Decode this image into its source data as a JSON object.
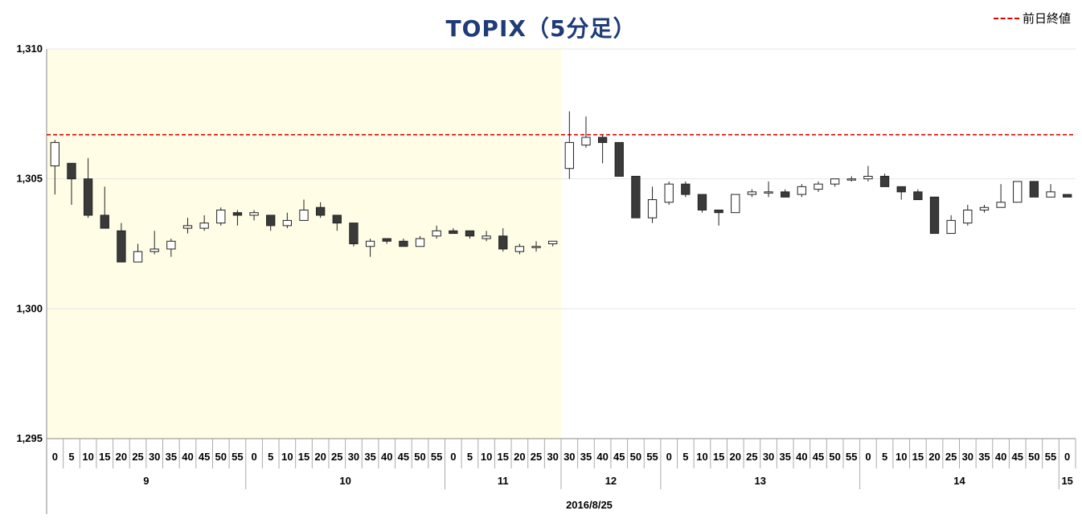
{
  "chart_data": {
    "type": "candlestick",
    "title": "TOPIX（5分足）",
    "legend": {
      "label": "前日終値",
      "color": "#e00000",
      "style": "dashed",
      "position": "top-right"
    },
    "reference_line": {
      "name": "前日終値",
      "value": 1306.7
    },
    "ylim": [
      1295,
      1310
    ],
    "yticks": [
      1295,
      1300,
      1305,
      1310
    ],
    "ytick_labels": [
      "1,295",
      "1,300",
      "1,305",
      "1,310"
    ],
    "date_label": "2016/8/25",
    "morning_session_shading": "#fffde6",
    "hour_groups": [
      {
        "label": "9",
        "count": 12
      },
      {
        "label": "10",
        "count": 12
      },
      {
        "label": "11",
        "count": 7
      },
      {
        "label": "12",
        "count": 6
      },
      {
        "label": "13",
        "count": 12
      },
      {
        "label": "14",
        "count": 12
      },
      {
        "label": "15",
        "count": 1
      }
    ],
    "shaded_count": 31,
    "candles": [
      {
        "x": "0",
        "o": 1305.5,
        "h": 1306.5,
        "l": 1304.4,
        "c": 1306.4
      },
      {
        "x": "5",
        "o": 1305.6,
        "h": 1305.6,
        "l": 1304.0,
        "c": 1305.0
      },
      {
        "x": "10",
        "o": 1305.0,
        "h": 1305.8,
        "l": 1303.5,
        "c": 1303.6
      },
      {
        "x": "15",
        "o": 1303.6,
        "h": 1304.7,
        "l": 1303.1,
        "c": 1303.1
      },
      {
        "x": "20",
        "o": 1303.0,
        "h": 1303.3,
        "l": 1301.8,
        "c": 1301.8
      },
      {
        "x": "25",
        "o": 1301.8,
        "h": 1302.5,
        "l": 1301.8,
        "c": 1302.2
      },
      {
        "x": "30",
        "o": 1302.2,
        "h": 1303.0,
        "l": 1302.1,
        "c": 1302.3
      },
      {
        "x": "35",
        "o": 1302.3,
        "h": 1302.7,
        "l": 1302.0,
        "c": 1302.6
      },
      {
        "x": "40",
        "o": 1303.1,
        "h": 1303.5,
        "l": 1302.9,
        "c": 1303.2
      },
      {
        "x": "45",
        "o": 1303.1,
        "h": 1303.6,
        "l": 1303.0,
        "c": 1303.3
      },
      {
        "x": "50",
        "o": 1303.3,
        "h": 1303.9,
        "l": 1303.2,
        "c": 1303.8
      },
      {
        "x": "55",
        "o": 1303.7,
        "h": 1303.8,
        "l": 1303.2,
        "c": 1303.6
      },
      {
        "x": "0",
        "o": 1303.6,
        "h": 1303.8,
        "l": 1303.4,
        "c": 1303.7
      },
      {
        "x": "5",
        "o": 1303.6,
        "h": 1303.6,
        "l": 1303.0,
        "c": 1303.2
      },
      {
        "x": "10",
        "o": 1303.2,
        "h": 1303.7,
        "l": 1303.1,
        "c": 1303.4
      },
      {
        "x": "15",
        "o": 1303.4,
        "h": 1304.2,
        "l": 1303.4,
        "c": 1303.8
      },
      {
        "x": "20",
        "o": 1303.9,
        "h": 1304.1,
        "l": 1303.5,
        "c": 1303.6
      },
      {
        "x": "25",
        "o": 1303.6,
        "h": 1303.6,
        "l": 1303.0,
        "c": 1303.3
      },
      {
        "x": "30",
        "o": 1303.3,
        "h": 1303.3,
        "l": 1302.4,
        "c": 1302.5
      },
      {
        "x": "35",
        "o": 1302.4,
        "h": 1302.7,
        "l": 1302.0,
        "c": 1302.6
      },
      {
        "x": "40",
        "o": 1302.7,
        "h": 1302.7,
        "l": 1302.5,
        "c": 1302.6
      },
      {
        "x": "45",
        "o": 1302.6,
        "h": 1302.7,
        "l": 1302.4,
        "c": 1302.4
      },
      {
        "x": "50",
        "o": 1302.4,
        "h": 1302.8,
        "l": 1302.4,
        "c": 1302.7
      },
      {
        "x": "55",
        "o": 1302.8,
        "h": 1303.2,
        "l": 1302.7,
        "c": 1303.0
      },
      {
        "x": "0",
        "o": 1303.0,
        "h": 1303.1,
        "l": 1302.9,
        "c": 1302.9
      },
      {
        "x": "5",
        "o": 1303.0,
        "h": 1303.0,
        "l": 1302.7,
        "c": 1302.8
      },
      {
        "x": "10",
        "o": 1302.7,
        "h": 1303.0,
        "l": 1302.6,
        "c": 1302.8
      },
      {
        "x": "15",
        "o": 1302.8,
        "h": 1303.1,
        "l": 1302.2,
        "c": 1302.3
      },
      {
        "x": "20",
        "o": 1302.2,
        "h": 1302.5,
        "l": 1302.1,
        "c": 1302.4
      },
      {
        "x": "25",
        "o": 1302.4,
        "h": 1302.6,
        "l": 1302.2,
        "c": 1302.4
      },
      {
        "x": "30",
        "o": 1302.5,
        "h": 1302.6,
        "l": 1302.4,
        "c": 1302.6
      },
      {
        "x": "30",
        "o": 1305.4,
        "h": 1307.6,
        "l": 1305.0,
        "c": 1306.4
      },
      {
        "x": "35",
        "o": 1306.3,
        "h": 1307.4,
        "l": 1306.2,
        "c": 1306.6
      },
      {
        "x": "40",
        "o": 1306.6,
        "h": 1306.7,
        "l": 1305.6,
        "c": 1306.4
      },
      {
        "x": "45",
        "o": 1306.4,
        "h": 1306.4,
        "l": 1305.1,
        "c": 1305.1
      },
      {
        "x": "50",
        "o": 1305.1,
        "h": 1305.1,
        "l": 1303.5,
        "c": 1303.5
      },
      {
        "x": "55",
        "o": 1303.5,
        "h": 1304.7,
        "l": 1303.3,
        "c": 1304.2
      },
      {
        "x": "0",
        "o": 1304.1,
        "h": 1304.9,
        "l": 1304.0,
        "c": 1304.8
      },
      {
        "x": "5",
        "o": 1304.8,
        "h": 1304.9,
        "l": 1304.3,
        "c": 1304.4
      },
      {
        "x": "10",
        "o": 1304.4,
        "h": 1304.4,
        "l": 1303.7,
        "c": 1303.8
      },
      {
        "x": "15",
        "o": 1303.8,
        "h": 1303.8,
        "l": 1303.2,
        "c": 1303.7
      },
      {
        "x": "20",
        "o": 1303.7,
        "h": 1304.4,
        "l": 1303.7,
        "c": 1304.4
      },
      {
        "x": "25",
        "o": 1304.4,
        "h": 1304.6,
        "l": 1304.3,
        "c": 1304.5
      },
      {
        "x": "30",
        "o": 1304.5,
        "h": 1304.9,
        "l": 1304.3,
        "c": 1304.5
      },
      {
        "x": "35",
        "o": 1304.5,
        "h": 1304.6,
        "l": 1304.3,
        "c": 1304.3
      },
      {
        "x": "40",
        "o": 1304.4,
        "h": 1304.8,
        "l": 1304.3,
        "c": 1304.7
      },
      {
        "x": "45",
        "o": 1304.6,
        "h": 1304.9,
        "l": 1304.5,
        "c": 1304.8
      },
      {
        "x": "50",
        "o": 1304.8,
        "h": 1305.0,
        "l": 1304.7,
        "c": 1305.0
      },
      {
        "x": "55",
        "o": 1305.0,
        "h": 1305.1,
        "l": 1304.9,
        "c": 1305.0
      },
      {
        "x": "0",
        "o": 1305.0,
        "h": 1305.5,
        "l": 1304.9,
        "c": 1305.1
      },
      {
        "x": "5",
        "o": 1305.1,
        "h": 1305.2,
        "l": 1304.7,
        "c": 1304.7
      },
      {
        "x": "10",
        "o": 1304.7,
        "h": 1304.7,
        "l": 1304.2,
        "c": 1304.5
      },
      {
        "x": "15",
        "o": 1304.5,
        "h": 1304.6,
        "l": 1304.2,
        "c": 1304.2
      },
      {
        "x": "20",
        "o": 1304.3,
        "h": 1304.3,
        "l": 1302.9,
        "c": 1302.9
      },
      {
        "x": "25",
        "o": 1302.9,
        "h": 1303.6,
        "l": 1302.9,
        "c": 1303.4
      },
      {
        "x": "30",
        "o": 1303.3,
        "h": 1304.0,
        "l": 1303.2,
        "c": 1303.8
      },
      {
        "x": "35",
        "o": 1303.8,
        "h": 1304.0,
        "l": 1303.7,
        "c": 1303.9
      },
      {
        "x": "40",
        "o": 1303.9,
        "h": 1304.8,
        "l": 1303.9,
        "c": 1304.1
      },
      {
        "x": "45",
        "o": 1304.1,
        "h": 1304.9,
        "l": 1304.1,
        "c": 1304.9
      },
      {
        "x": "50",
        "o": 1304.9,
        "h": 1304.9,
        "l": 1304.3,
        "c": 1304.3
      },
      {
        "x": "55",
        "o": 1304.3,
        "h": 1304.8,
        "l": 1304.3,
        "c": 1304.5
      },
      {
        "x": "0",
        "o": 1304.4,
        "h": 1304.4,
        "l": 1304.3,
        "c": 1304.3
      }
    ]
  }
}
